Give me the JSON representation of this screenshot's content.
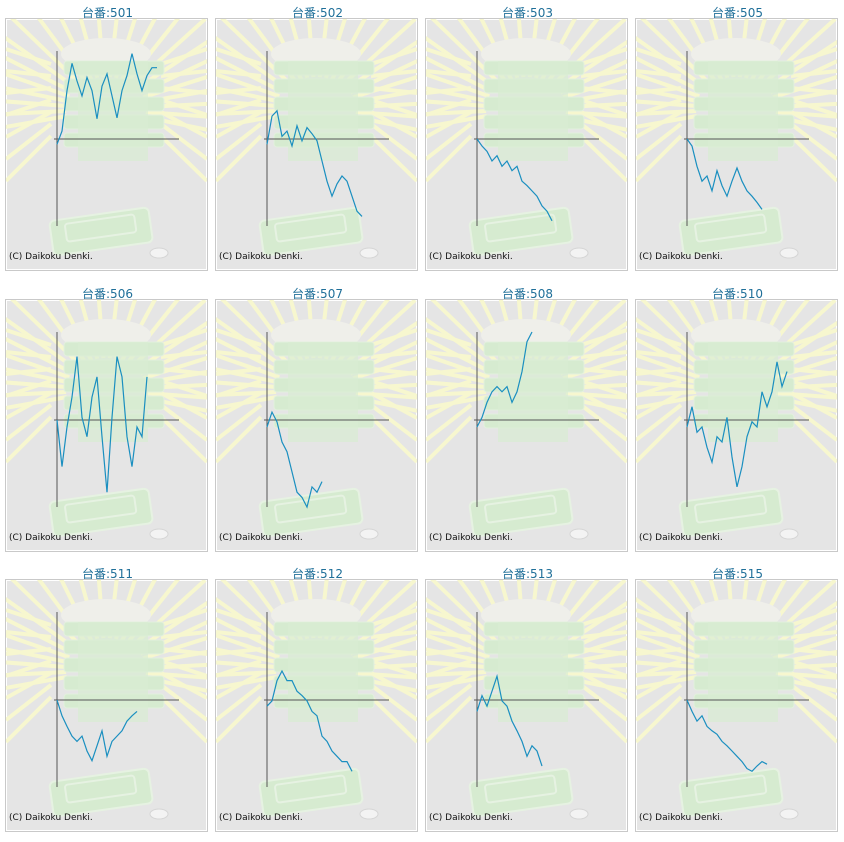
{
  "copyright": "(C) Daikoku Denki.",
  "colors": {
    "title": "#1f6f99",
    "line": "#1a8fc0",
    "axis": "#555555",
    "background": "#e5e5e5"
  },
  "chart_data": [
    {
      "type": "line",
      "title": "台番:501",
      "ylim": [
        -1,
        1
      ],
      "values": [
        -0.06,
        0.09,
        0.55,
        0.86,
        0.66,
        0.49,
        0.7,
        0.55,
        0.23,
        0.6,
        0.74,
        0.49,
        0.24,
        0.55,
        0.72,
        0.97,
        0.74,
        0.55,
        0.72,
        0.81,
        0.81
      ]
    },
    {
      "type": "line",
      "title": "台番:502",
      "ylim": [
        -1,
        1
      ],
      "values": [
        -0.06,
        0.26,
        0.32,
        0.03,
        0.09,
        -0.08,
        0.15,
        -0.02,
        0.13,
        0.06,
        -0.02,
        -0.25,
        -0.48,
        -0.65,
        -0.51,
        -0.42,
        -0.48,
        -0.65,
        -0.82,
        -0.88
      ]
    },
    {
      "type": "line",
      "title": "台番:503",
      "ylim": [
        -1,
        1
      ],
      "values": [
        0,
        -0.08,
        -0.14,
        -0.25,
        -0.19,
        -0.31,
        -0.25,
        -0.36,
        -0.31,
        -0.48,
        -0.53,
        -0.59,
        -0.65,
        -0.76,
        -0.82,
        -0.93
      ]
    },
    {
      "type": "line",
      "title": "台番:505",
      "ylim": [
        -1,
        1
      ],
      "values": [
        0,
        -0.08,
        -0.31,
        -0.48,
        -0.42,
        -0.59,
        -0.36,
        -0.53,
        -0.65,
        -0.48,
        -0.33,
        -0.48,
        -0.59,
        -0.65,
        -0.72,
        -0.8
      ]
    },
    {
      "type": "line",
      "title": "台番:506",
      "ylim": [
        -1,
        1
      ],
      "values": [
        0,
        -0.53,
        -0.08,
        0.26,
        0.72,
        0.03,
        -0.19,
        0.26,
        0.49,
        -0.19,
        -0.82,
        0.03,
        0.72,
        0.49,
        -0.19,
        -0.53,
        -0.08,
        -0.19,
        0.49
      ]
    },
    {
      "type": "line",
      "title": "台番:507",
      "ylim": [
        -1,
        1
      ],
      "values": [
        -0.08,
        0.09,
        -0.02,
        -0.25,
        -0.36,
        -0.59,
        -0.82,
        -0.88,
        -0.99,
        -0.76,
        -0.82,
        -0.7
      ]
    },
    {
      "type": "line",
      "title": "台番:508",
      "ylim": [
        -1,
        1
      ],
      "values": [
        -0.08,
        0.03,
        0.2,
        0.32,
        0.38,
        0.32,
        0.38,
        0.2,
        0.32,
        0.55,
        0.89,
        1.0
      ]
    },
    {
      "type": "line",
      "title": "台番:510",
      "ylim": [
        -1,
        1
      ],
      "values": [
        -0.08,
        0.15,
        -0.14,
        -0.08,
        -0.31,
        -0.48,
        -0.19,
        -0.25,
        0.03,
        -0.42,
        -0.76,
        -0.53,
        -0.19,
        -0.02,
        -0.08,
        0.32,
        0.15,
        0.32,
        0.66,
        0.38,
        0.55
      ]
    },
    {
      "type": "line",
      "title": "台番:511",
      "ylim": [
        -1,
        1
      ],
      "values": [
        0,
        -0.18,
        -0.3,
        -0.41,
        -0.47,
        -0.41,
        -0.58,
        -0.69,
        -0.52,
        -0.35,
        -0.64,
        -0.47,
        -0.41,
        -0.35,
        -0.24,
        -0.18,
        -0.13
      ]
    },
    {
      "type": "line",
      "title": "台番:512",
      "ylim": [
        -1,
        1
      ],
      "values": [
        -0.07,
        -0.01,
        0.22,
        0.33,
        0.22,
        0.22,
        0.1,
        0.05,
        -0.01,
        -0.13,
        -0.18,
        -0.41,
        -0.47,
        -0.58,
        -0.64,
        -0.7,
        -0.7,
        -0.81
      ]
    },
    {
      "type": "line",
      "title": "台番:513",
      "ylim": [
        -1,
        1
      ],
      "values": [
        -0.13,
        0.05,
        -0.07,
        0.1,
        0.27,
        -0.01,
        -0.07,
        -0.24,
        -0.35,
        -0.47,
        -0.64,
        -0.52,
        -0.58,
        -0.75
      ]
    },
    {
      "type": "line",
      "title": "台番:515",
      "ylim": [
        -1,
        1
      ],
      "values": [
        0,
        -0.13,
        -0.24,
        -0.18,
        -0.3,
        -0.35,
        -0.39,
        -0.47,
        -0.52,
        -0.58,
        -0.64,
        -0.7,
        -0.78,
        -0.81,
        -0.75,
        -0.7,
        -0.73
      ]
    }
  ]
}
